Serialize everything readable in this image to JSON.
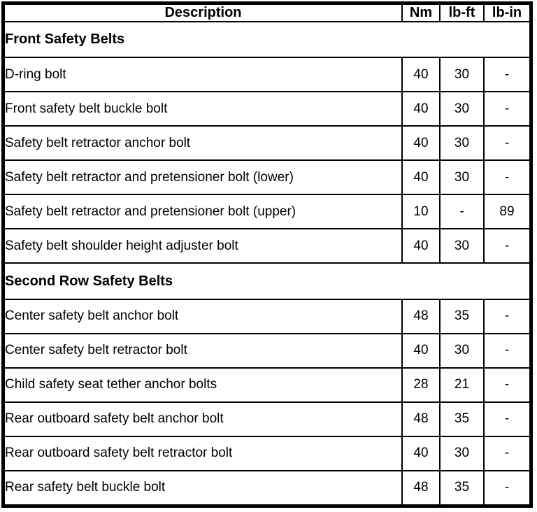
{
  "table": {
    "columns": [
      "Description",
      "Nm",
      "lb-ft",
      "lb-in"
    ],
    "sections": [
      {
        "title": "Front Safety Belts",
        "rows": [
          [
            "D-ring bolt",
            "40",
            "30",
            "-"
          ],
          [
            "Front safety belt buckle bolt",
            "40",
            "30",
            "-"
          ],
          [
            "Safety belt retractor anchor bolt",
            "40",
            "30",
            "-"
          ],
          [
            "Safety belt retractor and pretensioner bolt (lower)",
            "40",
            "30",
            "-"
          ],
          [
            "Safety belt retractor and pretensioner bolt (upper)",
            "10",
            "-",
            "89"
          ],
          [
            "Safety belt shoulder height adjuster bolt",
            "40",
            "30",
            "-"
          ]
        ]
      },
      {
        "title": "Second Row Safety Belts",
        "rows": [
          [
            "Center safety belt anchor bolt",
            "48",
            "35",
            "-"
          ],
          [
            "Center safety belt retractor bolt",
            "40",
            "30",
            "-"
          ],
          [
            "Child safety seat tether anchor bolts",
            "28",
            "21",
            "-"
          ],
          [
            "Rear outboard safety belt anchor bolt",
            "48",
            "35",
            "-"
          ],
          [
            "Rear outboard safety belt retractor bolt",
            "40",
            "30",
            "-"
          ],
          [
            "Rear safety belt buckle bolt",
            "48",
            "35",
            "-"
          ]
        ]
      }
    ],
    "colors": {
      "border": "#000000",
      "text": "#000000",
      "background": "#ffffff"
    }
  }
}
